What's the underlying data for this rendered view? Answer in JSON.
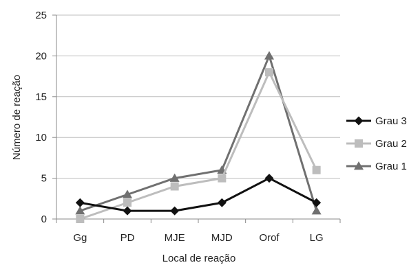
{
  "chart_data": {
    "type": "line",
    "title": "",
    "xlabel": "Local de reação",
    "ylabel": "Número de reação",
    "categories": [
      "Gg",
      "PD",
      "MJE",
      "MJD",
      "Orof",
      "LG"
    ],
    "yticks": [
      "0",
      "5",
      "10",
      "15",
      "20",
      "25"
    ],
    "ylim": [
      0,
      25
    ],
    "grid": true,
    "legend_position": "right",
    "series": [
      {
        "name": "Grau 3",
        "values": [
          2,
          1,
          1,
          2,
          5,
          2
        ],
        "color": "#111111",
        "marker": "diamond"
      },
      {
        "name": "Grau 2",
        "values": [
          0,
          2,
          4,
          5,
          18,
          6
        ],
        "color": "#bdbdbd",
        "marker": "square"
      },
      {
        "name": "Grau 1",
        "values": [
          1,
          3,
          5,
          6,
          20,
          1
        ],
        "color": "#707070",
        "marker": "triangle"
      }
    ]
  }
}
